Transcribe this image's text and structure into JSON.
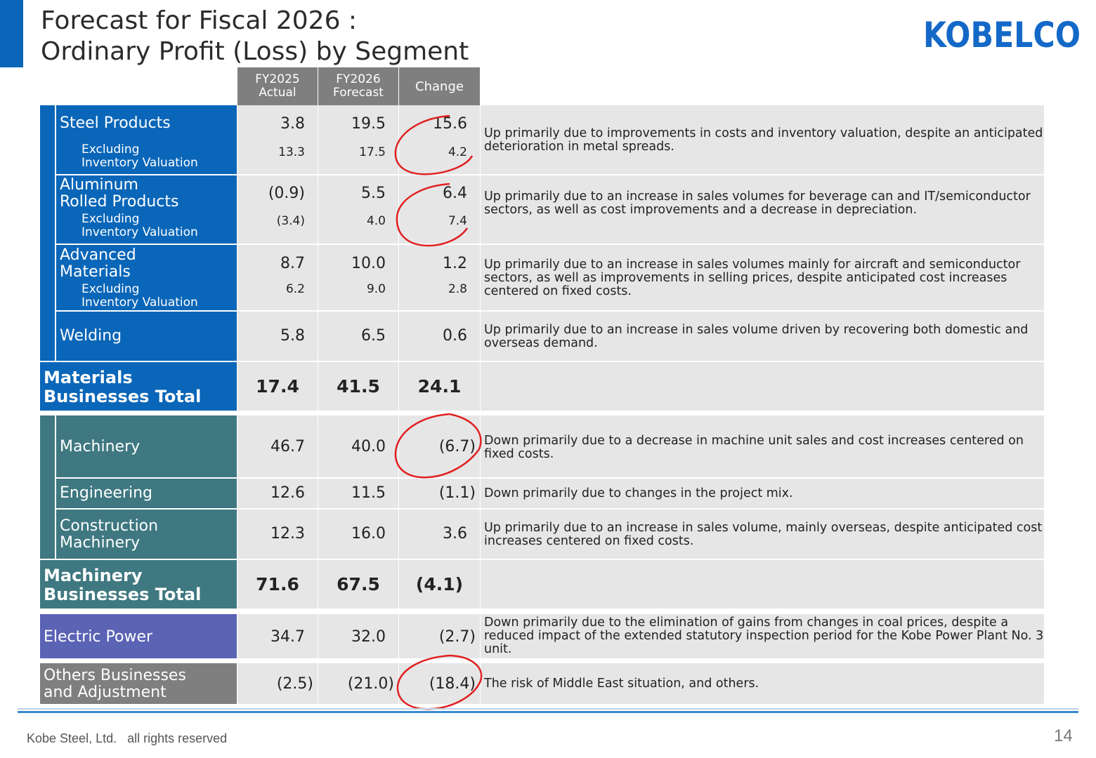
{
  "title": {
    "line1": "Forecast for Fiscal 2026 :",
    "line2": "Ordinary Profit (Loss) by Segment"
  },
  "logo": {
    "text": "KOBELCO"
  },
  "columns": {
    "actual_line1": "FY2025",
    "actual_line2": "Actual",
    "forecast_line1": "FY2026",
    "forecast_line2": "Forecast",
    "change": "Change"
  },
  "materials": {
    "steel": {
      "label": "Steel Products",
      "actual": "3.8",
      "forecast": "19.5",
      "change": "15.6",
      "ex_label1": "Excluding",
      "ex_label2": "Inventory Valuation",
      "ex_actual": "13.3",
      "ex_forecast": "17.5",
      "ex_change": "4.2",
      "desc": "Up primarily due to improvements in costs and inventory valuation, despite an anticipated deterioration in metal spreads."
    },
    "aluminum": {
      "label1": "Aluminum",
      "label2": "Rolled Products",
      "actual": "(0.9)",
      "forecast": "5.5",
      "change": "6.4",
      "ex_label1": "Excluding",
      "ex_label2": "Inventory Valuation",
      "ex_actual": "(3.4)",
      "ex_forecast": "4.0",
      "ex_change": "7.4",
      "desc": "Up primarily due to an increase in sales volumes for beverage can and IT/semiconductor sectors, as well as cost improvements and a decrease in depreciation."
    },
    "advanced": {
      "label1": "Advanced",
      "label2": "Materials",
      "actual": "8.7",
      "forecast": "10.0",
      "change": "1.2",
      "ex_label1": "Excluding",
      "ex_label2": "Inventory Valuation",
      "ex_actual": "6.2",
      "ex_forecast": "9.0",
      "ex_change": "2.8",
      "desc": "Up primarily due to an increase in sales volumes mainly for aircraft and semiconductor sectors, as well as improvements in selling prices, despite anticipated cost increases centered on fixed costs."
    },
    "welding": {
      "label": "Welding",
      "actual": "5.8",
      "forecast": "6.5",
      "change": "0.6",
      "desc": "Up primarily due to an increase in sales volume driven by recovering both domestic and overseas demand."
    },
    "total": {
      "label1": "Materials",
      "label2": "Businesses Total",
      "actual": "17.4",
      "forecast": "41.5",
      "change": "24.1"
    }
  },
  "machinery": {
    "machinery": {
      "label": "Machinery",
      "actual": "46.7",
      "forecast": "40.0",
      "change": "(6.7)",
      "desc": "Down primarily due to a decrease in machine unit sales and cost increases centered on fixed costs."
    },
    "engineering": {
      "label": "Engineering",
      "actual": "12.6",
      "forecast": "11.5",
      "change": "(1.1)",
      "desc": "Down primarily due to changes in the project mix."
    },
    "construction": {
      "label1": "Construction",
      "label2": "Machinery",
      "actual": "12.3",
      "forecast": "16.0",
      "change": "3.6",
      "desc": "Up primarily due to an increase in sales volume, mainly overseas, despite anticipated cost increases centered on fixed costs."
    },
    "total": {
      "label1": "Machinery",
      "label2": "Businesses Total",
      "actual": "71.6",
      "forecast": "67.5",
      "change": "(4.1)"
    }
  },
  "electric": {
    "label": "Electric Power",
    "actual": "34.7",
    "forecast": "32.0",
    "change": "(2.7)",
    "desc": "Down primarily due to the elimination of gains from changes in coal prices, despite a reduced impact of the extended statutory inspection period for the Kobe Power Plant No. 3 unit."
  },
  "others": {
    "label1": "Others Businesses",
    "label2": "and Adjustment",
    "actual": "(2.5)",
    "forecast": "(21.0)",
    "change": "(18.4)",
    "desc": "The risk of Middle East situation, and others."
  },
  "colors": {
    "materials": "#0a66b8",
    "machinery": "#3f7880",
    "electric": "#5b63b5",
    "others": "#7f7f7f",
    "annotation": "#e02020"
  },
  "footer": {
    "company": "Kobe Steel, Ltd.   all rights reserved",
    "page": "14"
  }
}
